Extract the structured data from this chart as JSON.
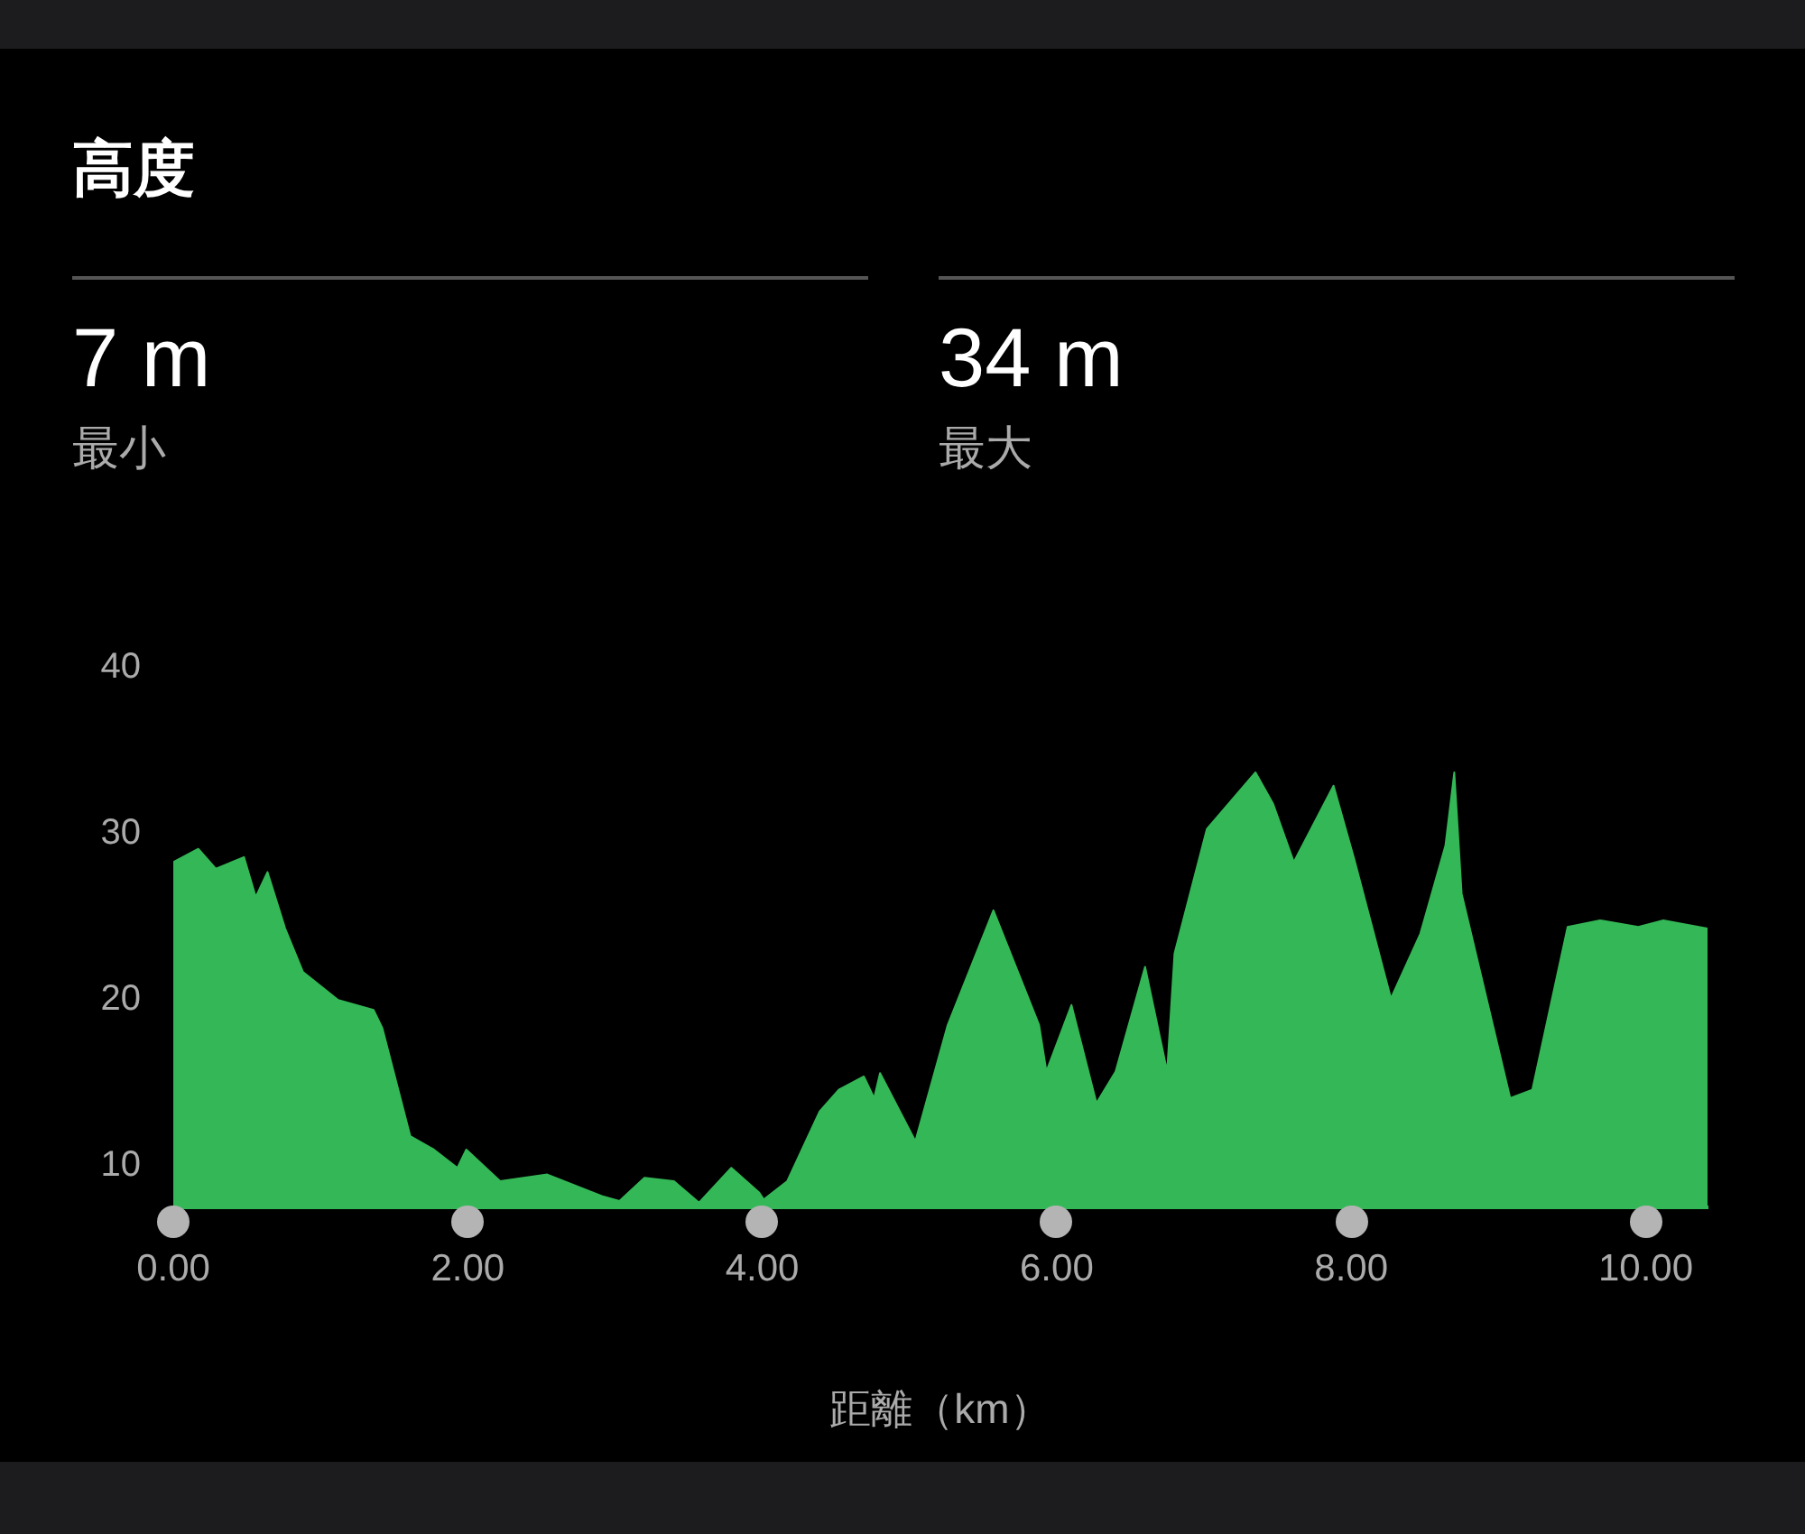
{
  "chart_data": {
    "type": "area",
    "title": "高度",
    "xlabel": "距離（km）",
    "annotations": [
      "7 m",
      "最小",
      "34 m",
      "最大"
    ],
    "xlim": [
      0,
      10.42
    ],
    "xticks": [
      {
        "value": 0,
        "label": "0.00"
      },
      {
        "value": 2,
        "label": "2.00"
      },
      {
        "value": 4,
        "label": "4.00"
      },
      {
        "value": 6,
        "label": "6.00"
      },
      {
        "value": 8,
        "label": "8.00"
      },
      {
        "value": 10,
        "label": "10.00"
      }
    ],
    "ylim": [
      7.5,
      40
    ],
    "yticks": [
      10,
      20,
      30,
      40
    ],
    "grid": false,
    "legend": false,
    "marker": "none",
    "series": [
      {
        "color": "#34b857",
        "x": [
          0,
          0.17,
          0.29,
          0.48,
          0.56,
          0.64,
          0.76,
          0.88,
          1.12,
          1.36,
          1.42,
          1.61,
          1.77,
          1.93,
          1.99,
          2.22,
          2.54,
          2.91,
          3.03,
          3.2,
          3.4,
          3.57,
          3.79,
          3.98,
          4.01,
          4.17,
          4.39,
          4.52,
          4.69,
          4.76,
          4.8,
          5.04,
          5.26,
          5.57,
          5.88,
          5.93,
          6.1,
          6.27,
          6.4,
          6.6,
          6.75,
          6.8,
          7.02,
          7.35,
          7.47,
          7.61,
          7.88,
          8.02,
          8.27,
          8.47,
          8.64,
          8.7,
          8.75,
          9.08,
          9.23,
          9.47,
          9.69,
          9.95,
          10.12,
          10.42
        ],
        "values": [
          28.3,
          29.1,
          27.9,
          28.6,
          26.2,
          27.7,
          24.3,
          21.7,
          20,
          19.4,
          18.3,
          11.8,
          11,
          9.9,
          11,
          9.1,
          9.5,
          8.2,
          7.9,
          9.3,
          9.1,
          7.8,
          9.9,
          8.4,
          8,
          9.1,
          13.3,
          14.6,
          15.4,
          14.1,
          15.6,
          11.5,
          18.5,
          25.4,
          18.5,
          15.7,
          19.7,
          13.8,
          15.7,
          22,
          15.7,
          22.8,
          30.3,
          33.7,
          31.8,
          28.3,
          32.9,
          28.5,
          20.1,
          24,
          29.3,
          33.7,
          26.4,
          14.1,
          14.6,
          24.4,
          24.8,
          24.4,
          24.8,
          24.3
        ]
      }
    ]
  }
}
